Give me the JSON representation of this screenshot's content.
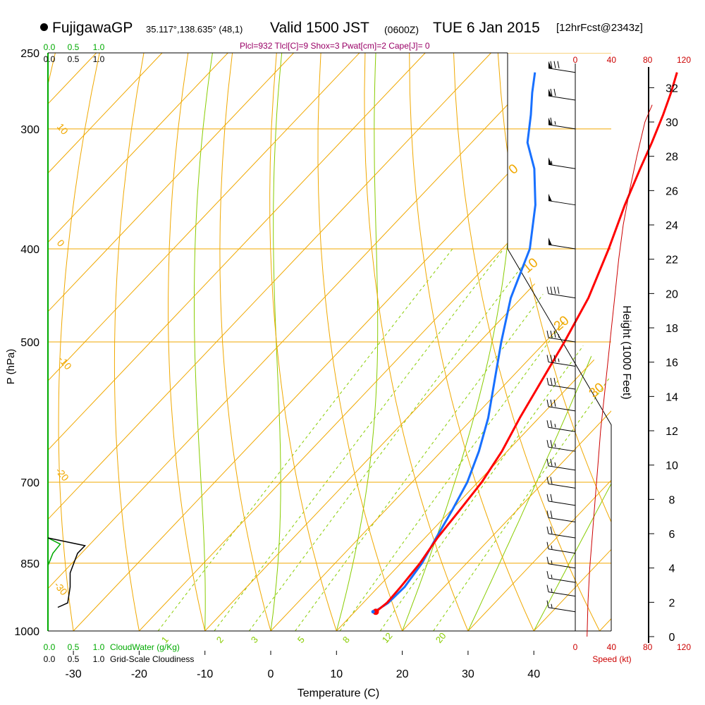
{
  "header": {
    "station": "FujigawaGP",
    "coords": "35.117°,138.635° (48,1)",
    "valid": "Valid 1500 JST",
    "zulu": "(0600Z)",
    "date": "TUE 6 Jan 2015",
    "forecast": "[12hrFcst@2343z]"
  },
  "indices": "Plcl=932 Tlcl[C]=9 Shox=3 Pwat[cm]=2 Cape[J]= 0",
  "colors": {
    "isotherm": "#f0a800",
    "dry_adiabat": "#f0a800",
    "moist_adiabat": "#88cc00",
    "mixing_ratio": "#88cc00",
    "temperature": "#ff0000",
    "dewpoint": "#1870ff",
    "cloud_water": "#00aa00",
    "wind_speed": "#cc0000",
    "text": "#000000"
  },
  "chart_data": {
    "type": "line",
    "title": "",
    "xlabel": "Temperature (C)",
    "ylabel": "P (hPa)",
    "y_scale": "log",
    "ylim": [
      1000,
      250
    ],
    "xlim": [
      -35,
      45
    ],
    "x_ticks": [
      "-30",
      "-20",
      "-10",
      "0",
      "10",
      "20",
      "30",
      "40"
    ],
    "x_tick_values": [
      -30,
      -20,
      -10,
      0,
      10,
      20,
      30,
      40
    ],
    "pressure_ticks": [
      "250",
      "300",
      "400",
      "500",
      "700",
      "850",
      "1000"
    ],
    "pressure_tick_values": [
      250,
      300,
      400,
      500,
      700,
      850,
      1000
    ],
    "height_axis": {
      "label": "Height (1000 Feet)",
      "ticks": [
        "0",
        "2",
        "4",
        "6",
        "8",
        "10",
        "12",
        "14",
        "16",
        "18",
        "20",
        "22",
        "24",
        "26",
        "28",
        "30",
        "32"
      ]
    },
    "wind_speed_axis": {
      "label": "Speed (kt)",
      "ticks": [
        "0",
        "40",
        "80",
        "120"
      ],
      "tick_values": [
        0,
        40,
        80,
        120
      ]
    },
    "cloud_axis": {
      "cloudwater_label": "CloudWater (g/Kg)",
      "cloudiness_label": "Grid-Scale Cloudiness",
      "ticks": [
        "0.0",
        "0.5",
        "1.0"
      ]
    },
    "dry_adiabat_labels": [
      "10",
      "0",
      "-10",
      "-20",
      "-30"
    ],
    "dry_adiabat_values": [
      10,
      0,
      -10,
      -20,
      -30
    ],
    "moist_adiabat_labels": [
      "0",
      "10",
      "20",
      "30"
    ],
    "mixing_ratio_labels": [
      "1",
      "2",
      "3",
      "5",
      "8",
      "12",
      "20"
    ],
    "mixing_ratio_values": [
      1,
      2,
      3,
      5,
      8,
      12,
      20
    ],
    "series": [
      {
        "name": "temperature",
        "points": [
          [
            13.2,
            955
          ],
          [
            13.6,
            935
          ],
          [
            13.4,
            900
          ],
          [
            12.9,
            850
          ],
          [
            11.9,
            800
          ],
          [
            11.3,
            750
          ],
          [
            10.6,
            700
          ],
          [
            9.2,
            650
          ],
          [
            7.1,
            600
          ],
          [
            5.1,
            550
          ],
          [
            2.9,
            500
          ],
          [
            0.2,
            450
          ],
          [
            -3.8,
            400
          ],
          [
            -7.7,
            360
          ],
          [
            -10.6,
            330
          ],
          [
            -12.6,
            310
          ],
          [
            -14.9,
            290
          ],
          [
            -16.9,
            275
          ],
          [
            -18.9,
            262
          ]
        ]
      },
      {
        "name": "dewpoint",
        "points": [
          [
            13.0,
            955
          ],
          [
            13.8,
            935
          ],
          [
            14.0,
            900
          ],
          [
            13.2,
            850
          ],
          [
            11.7,
            800
          ],
          [
            10.2,
            750
          ],
          [
            8.4,
            700
          ],
          [
            5.7,
            650
          ],
          [
            2.3,
            600
          ],
          [
            -2.0,
            550
          ],
          [
            -6.7,
            500
          ],
          [
            -11.6,
            450
          ],
          [
            -15.8,
            400
          ],
          [
            -21.3,
            360
          ],
          [
            -26.7,
            330
          ],
          [
            -31.5,
            310
          ],
          [
            -35.0,
            290
          ],
          [
            -38.0,
            275
          ],
          [
            -40.5,
            262
          ]
        ]
      }
    ],
    "wind_speed_profile": [
      [
        0,
        13
      ],
      [
        2,
        14
      ],
      [
        4,
        16
      ],
      [
        6,
        19
      ],
      [
        8,
        22
      ],
      [
        10,
        25
      ],
      [
        12,
        28
      ],
      [
        14,
        32
      ],
      [
        16,
        36
      ],
      [
        18,
        40
      ],
      [
        20,
        44
      ],
      [
        22,
        48
      ],
      [
        24,
        53
      ],
      [
        26,
        60
      ],
      [
        28,
        68
      ],
      [
        30,
        77
      ],
      [
        31,
        85
      ]
    ],
    "wind_barbs": [
      [
        955,
        0,
        14
      ],
      [
        920,
        0,
        15
      ],
      [
        890,
        0,
        15
      ],
      [
        860,
        0,
        16
      ],
      [
        830,
        0,
        17
      ],
      [
        800,
        0,
        19
      ],
      [
        770,
        0,
        20
      ],
      [
        740,
        0,
        21
      ],
      [
        710,
        0,
        22
      ],
      [
        680,
        0,
        23
      ],
      [
        650,
        0,
        25
      ],
      [
        620,
        0,
        27
      ],
      [
        590,
        0,
        29
      ],
      [
        560,
        0,
        31
      ],
      [
        530,
        0,
        33
      ],
      [
        500,
        0,
        35
      ],
      [
        450,
        0,
        40
      ],
      [
        400,
        0,
        45
      ],
      [
        360,
        0,
        50
      ],
      [
        330,
        0,
        55
      ],
      [
        300,
        0,
        65
      ],
      [
        280,
        0,
        72
      ],
      [
        262,
        0,
        78
      ]
    ],
    "cloud_water_profile": [
      [
        800,
        0.0
      ],
      [
        812,
        0.25
      ],
      [
        830,
        0.1
      ],
      [
        855,
        0.0
      ]
    ],
    "cloudiness_profile": [
      [
        800,
        0.0
      ],
      [
        815,
        0.75
      ],
      [
        830,
        0.6
      ],
      [
        870,
        0.45
      ],
      [
        900,
        0.45
      ],
      [
        935,
        0.4
      ],
      [
        945,
        0.2
      ]
    ]
  }
}
